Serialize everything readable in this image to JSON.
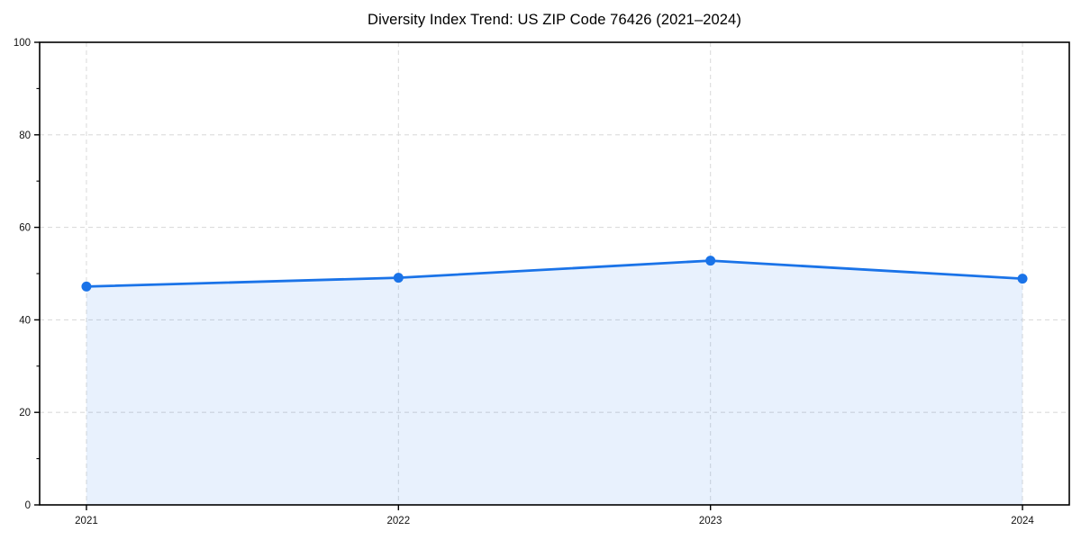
{
  "page": {
    "background": "#ffffff"
  },
  "chart_data": {
    "type": "area",
    "title": "Diversity Index Trend: US ZIP Code 76426 (2021–2024)",
    "xlabel": "",
    "ylabel": "",
    "categories": [
      "2021",
      "2022",
      "2023",
      "2024"
    ],
    "series": [
      {
        "name": "Diversity Index",
        "values": [
          47.2,
          49.1,
          52.8,
          48.9
        ]
      }
    ],
    "ylim": [
      0,
      100
    ],
    "yticks_major": [
      0,
      20,
      40,
      60,
      80,
      100
    ],
    "yticks_minor": [
      10,
      30,
      50,
      70,
      90
    ],
    "grid": "dashed, major y gridlines and x gridlines at each year",
    "legend": "none",
    "colors": {
      "line": "#1a73e8",
      "marker": "#1a73e8",
      "fill": "rgba(26,115,232,0.10)",
      "grid": "#dcdcdc",
      "spine": "#000000",
      "tick_label": "#111111",
      "title": "#000000"
    }
  }
}
